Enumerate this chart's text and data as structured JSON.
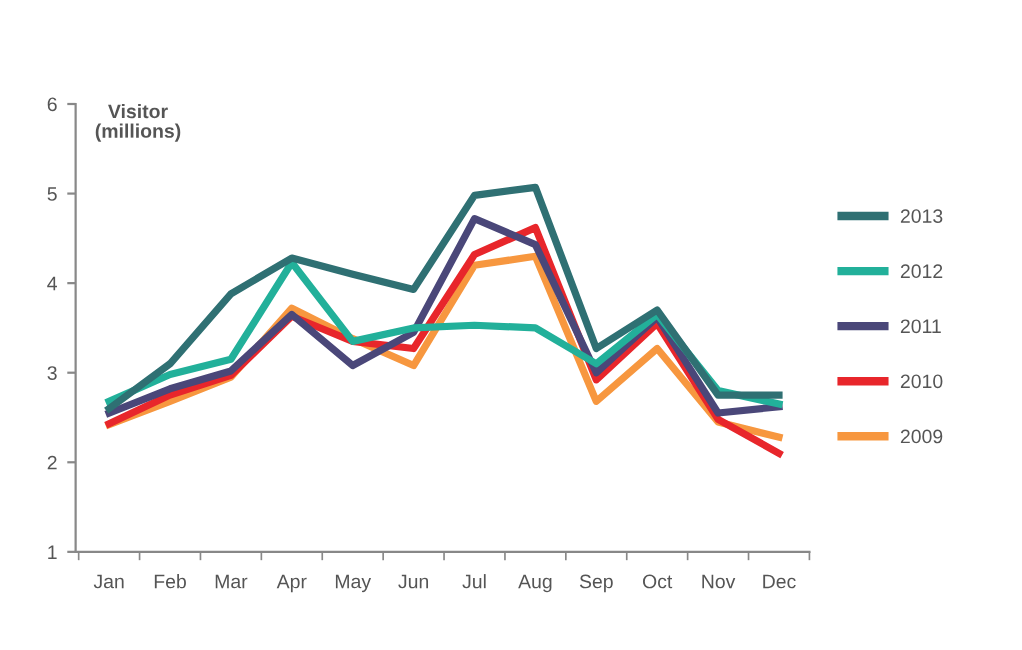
{
  "chart_data": {
    "type": "line",
    "ylabel": "Visitor\n(millions)",
    "categories": [
      "Jan",
      "Feb",
      "Mar",
      "Apr",
      "May",
      "Jun",
      "Jul",
      "Aug",
      "Sep",
      "Oct",
      "Nov",
      "Dec"
    ],
    "series": [
      {
        "name": "2013",
        "color": "#2f7073",
        "values": [
          2.6,
          3.1,
          3.88,
          4.28,
          4.1,
          3.93,
          4.98,
          5.07,
          3.27,
          3.7,
          2.75,
          2.75
        ]
      },
      {
        "name": "2012",
        "color": "#22b09a",
        "values": [
          2.68,
          2.98,
          3.15,
          4.23,
          3.35,
          3.5,
          3.53,
          3.5,
          3.1,
          3.65,
          2.8,
          2.65
        ]
      },
      {
        "name": "2011",
        "color": "#4a4779",
        "values": [
          2.55,
          2.82,
          3.02,
          3.65,
          3.08,
          3.45,
          4.72,
          4.43,
          3.0,
          3.62,
          2.55,
          2.62
        ]
      },
      {
        "name": "2010",
        "color": "#e8262b",
        "values": [
          2.43,
          2.75,
          2.97,
          3.63,
          3.35,
          3.27,
          4.32,
          4.62,
          2.92,
          3.55,
          2.48,
          2.1
        ]
      },
      {
        "name": "2009",
        "color": "#f7973f",
        "values": [
          2.42,
          2.68,
          2.95,
          3.72,
          3.38,
          3.08,
          4.2,
          4.3,
          2.68,
          3.27,
          2.45,
          2.28
        ]
      }
    ],
    "ylim": [
      1,
      6
    ],
    "yticks": [
      1,
      2,
      3,
      4,
      5,
      6
    ],
    "grid": false,
    "legend": "right",
    "marker": "none",
    "line_style": "solid"
  }
}
